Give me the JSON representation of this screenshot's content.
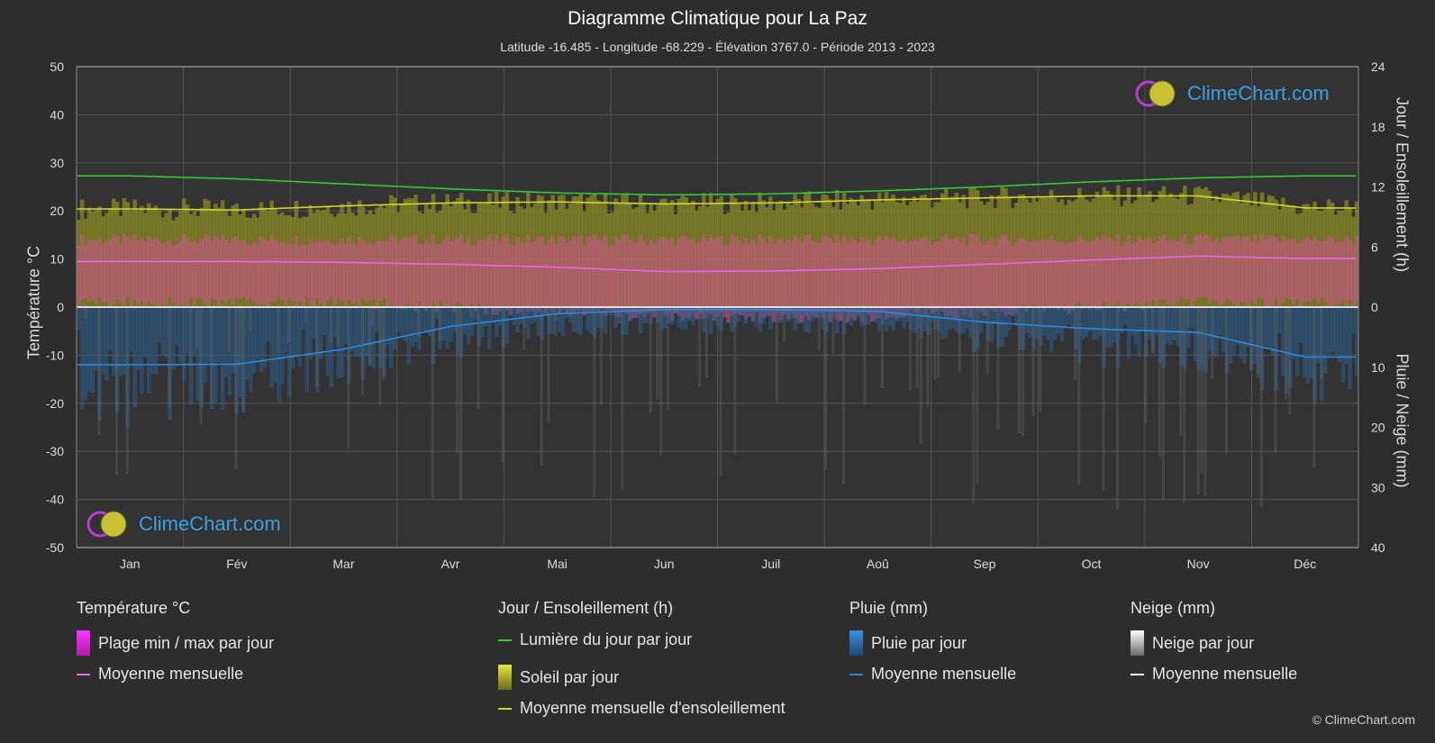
{
  "title": "Diagramme Climatique pour La Paz",
  "subtitle": "Latitude -16.485 - Longitude -68.229 - Élévation 3767.0 - Période 2013 - 2023",
  "axes": {
    "left_title": "Température °C",
    "right_top_title": "Jour / Ensoleillement (h)",
    "right_bottom_title": "Pluie / Neige (mm)"
  },
  "logo_text": "ClimeChart.com",
  "copyright": "© ClimeChart.com",
  "legend": {
    "temperature": {
      "head": "Température °C",
      "range": "Plage min / max par jour",
      "mean": "Moyenne mensuelle"
    },
    "sun": {
      "head": "Jour / Ensoleillement (h)",
      "daylight": "Lumière du jour par jour",
      "sunshine": "Soleil par jour",
      "sun_mean": "Moyenne mensuelle d'ensoleillement"
    },
    "rain": {
      "head": "Pluie (mm)",
      "daily": "Pluie par jour",
      "mean": "Moyenne mensuelle"
    },
    "snow": {
      "head": "Neige (mm)",
      "daily": "Neige par jour",
      "mean": "Moyenne mensuelle"
    }
  },
  "colors": {
    "daylight": "#33cc33",
    "sunshine_mean": "#d7d726",
    "temp_mean": "#ee66ee",
    "temp_range": "#e03aa0",
    "rain": "#2a7fc8",
    "snow": "#cccccc",
    "accent": "#3aa0e8"
  },
  "chart_data": {
    "type": "line",
    "categories": [
      "Jan",
      "Fév",
      "Mar",
      "Avr",
      "Mai",
      "Jun",
      "Juil",
      "Aoû",
      "Sep",
      "Oct",
      "Nov",
      "Déc"
    ],
    "y_left": {
      "label": "Température °C",
      "lim": [
        -50,
        50
      ],
      "ticks": [
        50,
        40,
        30,
        20,
        10,
        0,
        -10,
        -20,
        -30,
        -40,
        -50
      ]
    },
    "y_right_top": {
      "label": "Jour / Ensoleillement (h)",
      "lim": [
        0,
        24
      ],
      "ticks": [
        24,
        18,
        12,
        6,
        0
      ]
    },
    "y_right_bottom": {
      "label": "Pluie / Neige (mm)",
      "lim": [
        0,
        40
      ],
      "ticks": [
        0,
        10,
        20,
        30,
        40
      ]
    },
    "series": [
      {
        "name": "Lumière du jour par jour",
        "axis": "hours",
        "values": [
          13.1,
          12.8,
          12.3,
          11.8,
          11.4,
          11.2,
          11.3,
          11.6,
          12.0,
          12.5,
          12.9,
          13.1
        ]
      },
      {
        "name": "Moyenne mensuelle d'ensoleillement",
        "axis": "hours",
        "values": [
          9.8,
          9.7,
          10.1,
          10.4,
          10.5,
          10.3,
          10.4,
          10.7,
          10.9,
          11.1,
          11.1,
          9.9
        ]
      },
      {
        "name": "Moyenne mensuelle",
        "group": "Température °C",
        "axis": "temp",
        "values": [
          9.5,
          9.5,
          9.3,
          8.9,
          8.3,
          7.4,
          7.5,
          8.0,
          8.9,
          9.8,
          10.6,
          10.1
        ]
      },
      {
        "name": "Moyenne mensuelle",
        "group": "Pluie (mm)",
        "axis": "precip",
        "values": [
          9.6,
          9.5,
          7.0,
          3.2,
          1.1,
          0.4,
          0.4,
          0.7,
          2.5,
          3.6,
          4.2,
          8.3
        ]
      },
      {
        "name": "Plage min / max par jour",
        "axis": "temp",
        "min": [
          1,
          1,
          1,
          0,
          -1,
          -2,
          -2,
          -2,
          -1,
          0,
          1,
          1
        ],
        "max": [
          14,
          14,
          14,
          14,
          14,
          14,
          14,
          14,
          14,
          14,
          14,
          14
        ]
      }
    ],
    "grid": true
  }
}
